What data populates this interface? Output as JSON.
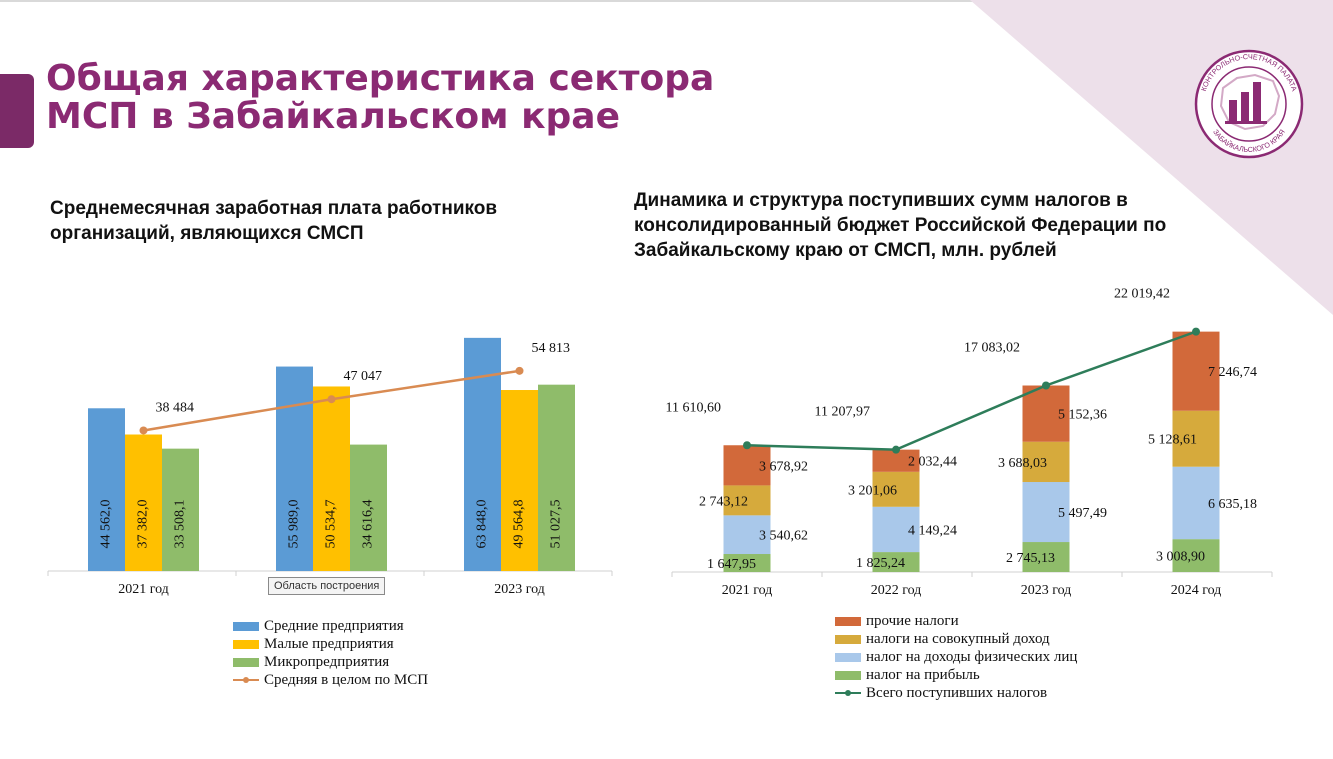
{
  "page": {
    "title_line1": "Общая характеристика сектора",
    "title_line2": "МСП в Забайкальском крае",
    "logo_text_top": "КОНТРОЛЬНО-СЧЕТНАЯ ПАЛАТА",
    "logo_text_bottom": "ЗАБАЙКАЛЬСКОГО КРАЯ",
    "tooltip": "Область построения"
  },
  "colors": {
    "title": "#8b2a73",
    "accent": "#7b2a67",
    "decor": "#ede0ea"
  },
  "chart_data": [
    {
      "type": "bar",
      "title": "Среднемесячная заработная плата работников организаций, являющихся СМСП",
      "categories": [
        "2021 год",
        "",
        "2023 год"
      ],
      "series": [
        {
          "name": "Средние предприятия",
          "color": "#5b9bd5",
          "values": [
            44562.0,
            55989.0,
            63848.0
          ],
          "labels": [
            "44 562,0",
            "55 989,0",
            "63 848,0"
          ]
        },
        {
          "name": "Малые предприятия",
          "color": "#ffc000",
          "values": [
            37382.0,
            50534.7,
            49564.8
          ],
          "labels": [
            "37 382,0",
            "50 534,7",
            "49 564,8"
          ]
        },
        {
          "name": "Микропредприятия",
          "color": "#8fbc6a",
          "values": [
            33508.1,
            34616.4,
            51027.5
          ],
          "labels": [
            "33 508,1",
            "34 616,4",
            "51 027,5"
          ]
        }
      ],
      "line": {
        "name": "Средняя в целом по МСП",
        "color": "#d98b52",
        "values": [
          38484,
          47047,
          54813
        ],
        "labels": [
          "38 484",
          "47 047",
          "54 813"
        ]
      },
      "ylim": [
        0,
        66000
      ],
      "xlabel": "",
      "ylabel": "",
      "grid": false,
      "legend_placement": "bottom"
    },
    {
      "type": "bar",
      "stacked": true,
      "title": "Динамика и структура поступивших сумм налогов в консолидированный бюджет Российской Федерации по Забайкальскому краю от СМСП, млн. рублей",
      "categories": [
        "2021 год",
        "2022 год",
        "2023 год",
        "2024 год"
      ],
      "series": [
        {
          "name": "налог на прибыль",
          "color": "#8fbc6a",
          "values": [
            1647.95,
            1825.24,
            2745.13,
            3008.9
          ],
          "labels": [
            "1 647,95",
            "1 825,24",
            "2 745,13",
            "3 008,90"
          ]
        },
        {
          "name": "налог на доходы физических лиц",
          "color": "#a9c8ea",
          "values": [
            3540.62,
            4149.24,
            5497.49,
            6635.18
          ],
          "labels": [
            "3 540,62",
            "4 149,24",
            "5 497,49",
            "6 635,18"
          ]
        },
        {
          "name": "налоги на совокупный доход",
          "color": "#d6aa3c",
          "values": [
            2743.12,
            3201.06,
            3688.03,
            5128.61
          ],
          "labels": [
            "2 743,12",
            "3 201,06",
            "3 688,03",
            "5 128,61"
          ]
        },
        {
          "name": "прочие налоги",
          "color": "#d2693a",
          "values": [
            3678.92,
            2032.44,
            5152.36,
            7246.74
          ],
          "labels": [
            "3 678,92",
            "2 032,44",
            "5 152,36",
            "7 246,74"
          ]
        }
      ],
      "line": {
        "name": "Всего поступивших налогов",
        "color": "#2e7d5a",
        "values": [
          11610.6,
          11207.97,
          17083.02,
          22019.42
        ],
        "labels": [
          "11 610,60",
          "11 207,97",
          "17 083,02",
          "22 019,42"
        ]
      },
      "ylim": [
        0,
        24000
      ],
      "xlabel": "",
      "ylabel": "",
      "grid": false,
      "legend_order": [
        "прочие налоги",
        "налоги на совокупный доход",
        "налог на доходы физических лиц",
        "налог на прибыль",
        "Всего поступивших налогов"
      ],
      "legend_placement": "bottom"
    }
  ]
}
